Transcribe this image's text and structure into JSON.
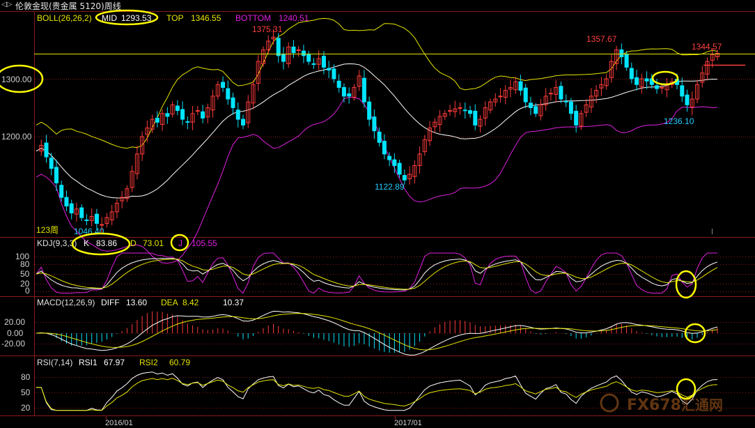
{
  "window": {
    "icon_glyph": "◁▷",
    "title": "伦敦金现(贵金属 5120)周线"
  },
  "colors": {
    "bg": "#000000",
    "up": "#ff3b3b",
    "down": "#00e5ff",
    "mid": "#ffffff",
    "band": "#e6e600",
    "bottom": "#e020e0",
    "grid": "#8b1a1a",
    "text": "#e6e600",
    "label_red": "#ff4040",
    "label_cyan": "#22ccff",
    "highlight": "#ffff00"
  },
  "boll": {
    "header": "BOLL(26,26,2)",
    "mid_label": "MID",
    "mid_value": "1293.53",
    "top_label": "TOP",
    "top_value": "1346.55",
    "bottom_label": "BOTTOM",
    "bottom_value": "1240.51",
    "y_ticks": [
      "1300.00",
      "1200.00"
    ],
    "period_text": "123周",
    "annotations": [
      "1375.31",
      "1357.67",
      "1344.57",
      "1046.40",
      "1122.89",
      "1236.10"
    ]
  },
  "kdj": {
    "header": "KDJ(9,3,3)",
    "k_label": "K",
    "k_value": "83.86",
    "d_label": "D",
    "d_value": "73.01",
    "j_label": "J",
    "j_value": "105.55",
    "y_ticks": [
      "100",
      "80",
      "50",
      "20",
      "0"
    ]
  },
  "macd": {
    "header": "MACD(12,26,9)",
    "diff_label": "DIFF",
    "diff_value": "13.60",
    "dea_label": "DEA",
    "dea_value": "8.42",
    "macd_value": "10.37",
    "y_ticks": [
      "20.00",
      "0.00",
      "-20.00"
    ]
  },
  "rsi": {
    "header": "RSI(7,14)",
    "rsi1_label": "RSI1",
    "rsi1_value": "67.97",
    "rsi2_label": "RSI2",
    "rsi2_value": "60.79",
    "y_ticks": [
      "80",
      "50",
      "20"
    ]
  },
  "x_axis": {
    "labels": [
      "2016/01",
      "2017/01"
    ]
  },
  "watermark": {
    "text": "FX678",
    "sub": "汇通网"
  },
  "chart_data": [
    {
      "type": "candlestick",
      "title": "伦敦金现(贵金属 5120)周线",
      "indicator": "BOLL(26,26,2)",
      "ylim": [
        1020,
        1400
      ],
      "y_tick_values": [
        1300,
        1200
      ],
      "levels": {
        "MID": 1293.53,
        "TOP": 1346.55,
        "BOTTOM": 1240.51
      },
      "annotated_extremes": {
        "high_1": 1375.31,
        "high_2": 1357.67,
        "high_3": 1344.57,
        "low_1": 1046.4,
        "low_2": 1122.89,
        "low_3": 1236.1
      },
      "horizontal_line": 1345,
      "x_labels": [
        "2016/01",
        "2017/01"
      ],
      "close_path": [
        1175,
        1185,
        1165,
        1145,
        1120,
        1095,
        1080,
        1068,
        1075,
        1060,
        1055,
        1062,
        1050,
        1048,
        1060,
        1070,
        1085,
        1095,
        1110,
        1140,
        1170,
        1200,
        1215,
        1230,
        1225,
        1240,
        1235,
        1255,
        1245,
        1230,
        1225,
        1240,
        1245,
        1232,
        1250,
        1270,
        1290,
        1285,
        1265,
        1250,
        1230,
        1220,
        1260,
        1290,
        1330,
        1350,
        1365,
        1372,
        1340,
        1330,
        1355,
        1345,
        1350,
        1340,
        1330,
        1325,
        1335,
        1320,
        1315,
        1300,
        1285,
        1270,
        1270,
        1285,
        1305,
        1260,
        1230,
        1210,
        1190,
        1170,
        1160,
        1150,
        1135,
        1125,
        1135,
        1150,
        1170,
        1195,
        1215,
        1225,
        1235,
        1240,
        1245,
        1248,
        1250,
        1245,
        1240,
        1220,
        1230,
        1250,
        1260,
        1265,
        1270,
        1280,
        1285,
        1295,
        1280,
        1260,
        1250,
        1240,
        1255,
        1270,
        1275,
        1285,
        1265,
        1260,
        1240,
        1220,
        1240,
        1255,
        1270,
        1280,
        1290,
        1300,
        1330,
        1350,
        1338,
        1320,
        1300,
        1290,
        1300,
        1296,
        1290,
        1283,
        1285,
        1290,
        1295,
        1290,
        1270,
        1255,
        1265,
        1290,
        1310,
        1330,
        1342,
        1344
      ]
    },
    {
      "type": "line",
      "indicator": "KDJ(9,3,3)",
      "ylim": [
        0,
        110
      ],
      "y_tick_values": [
        100,
        80,
        50,
        20,
        0
      ],
      "series": [
        {
          "name": "K",
          "last": 83.86
        },
        {
          "name": "D",
          "last": 73.01
        },
        {
          "name": "J",
          "last": 105.55
        }
      ]
    },
    {
      "type": "bar",
      "indicator": "MACD(12,26,9)",
      "ylim": [
        -30,
        30
      ],
      "y_tick_values": [
        20,
        0,
        -20
      ],
      "series": [
        {
          "name": "DIFF",
          "last": 13.6
        },
        {
          "name": "DEA",
          "last": 8.42
        },
        {
          "name": "MACD",
          "last": 10.37
        }
      ]
    },
    {
      "type": "line",
      "indicator": "RSI(7,14)",
      "ylim": [
        0,
        100
      ],
      "y_tick_values": [
        80,
        50,
        20
      ],
      "series": [
        {
          "name": "RSI1",
          "last": 67.97
        },
        {
          "name": "RSI2",
          "last": 60.79
        }
      ]
    }
  ]
}
